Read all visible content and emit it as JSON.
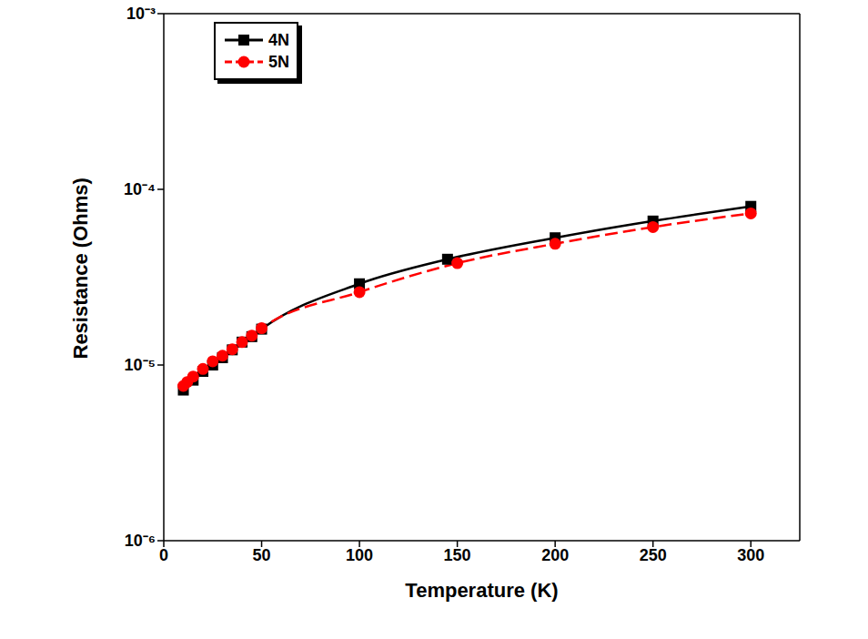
{
  "chart_data": {
    "type": "line",
    "x_label": "Temperature (K)",
    "y_label": "Resistance (Ohms)",
    "log": "y",
    "grid": false,
    "legend": "upper left",
    "xlim": [
      0,
      325
    ],
    "xticks": [
      0,
      50,
      100,
      150,
      200,
      250,
      300
    ],
    "ylim": [
      1e-06,
      0.001
    ],
    "yticks": [
      {
        "value": 1e-06,
        "label": "10⁻⁶"
      },
      {
        "value": 1e-05,
        "label": "10⁻⁵"
      },
      {
        "value": 0.0001,
        "label": "10⁻⁴"
      },
      {
        "value": 0.001,
        "label": "10⁻³"
      }
    ],
    "series": [
      {
        "name": "4N",
        "color": "#000000",
        "marker": "square",
        "line_style": "solid",
        "x": [
          10,
          15,
          20,
          25,
          30,
          35,
          40,
          45,
          50,
          100,
          145,
          200,
          250,
          300
        ],
        "values": [
          7.2e-06,
          8.2e-06,
          9.2e-06,
          1e-05,
          1.1e-05,
          1.22e-05,
          1.35e-05,
          1.45e-05,
          1.6e-05,
          2.9e-05,
          4e-05,
          5.3e-05,
          6.6e-05,
          8e-05
        ]
      },
      {
        "name": "5N",
        "color": "#ff0000",
        "marker": "circle",
        "line_style": "dashed",
        "x": [
          10,
          12,
          15,
          20,
          25,
          30,
          35,
          40,
          45,
          50,
          100,
          150,
          200,
          250,
          300
        ],
        "values": [
          7.6e-06,
          8e-06,
          8.6e-06,
          9.5e-06,
          1.05e-05,
          1.13e-05,
          1.23e-05,
          1.35e-05,
          1.47e-05,
          1.62e-05,
          2.6e-05,
          3.8e-05,
          4.9e-05,
          6.1e-05,
          7.3e-05
        ]
      }
    ]
  }
}
